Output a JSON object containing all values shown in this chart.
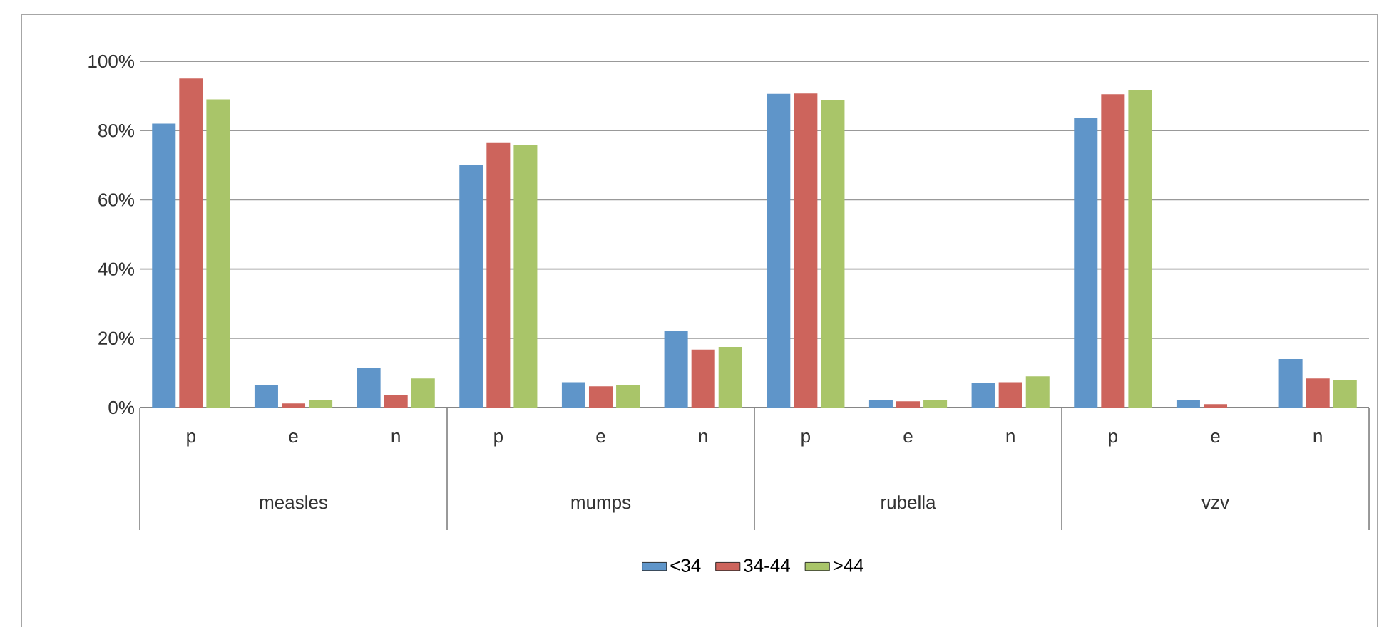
{
  "chart_data": {
    "type": "bar",
    "categories": [
      "p",
      "e",
      "n",
      "p",
      "e",
      "n",
      "p",
      "e",
      "n",
      "p",
      "e",
      "n"
    ],
    "series": [
      {
        "name": "<34",
        "color": "#5f95c9",
        "values": [
          82,
          6.4,
          11.5,
          70,
          7.3,
          22.2,
          90.6,
          2.2,
          7,
          83.7,
          2.1,
          14
        ]
      },
      {
        "name": "34-44",
        "color": "#cd645c",
        "values": [
          95,
          1.2,
          3.5,
          76.4,
          6.1,
          16.7,
          90.7,
          1.8,
          7.3,
          90.5,
          1,
          8.4
        ]
      },
      {
        "name": ">44",
        "color": "#a9c569",
        "values": [
          89,
          2.2,
          8.4,
          75.7,
          6.6,
          17.5,
          88.7,
          2.2,
          9,
          91.7,
          0,
          7.9
        ]
      }
    ],
    "annotations": [
      "measles",
      "mumps",
      "rubella",
      "vzv"
    ],
    "ylim": [
      0,
      100
    ],
    "yticks": [
      {
        "value": 0,
        "label": "0%"
      },
      {
        "value": 20,
        "label": "20%"
      },
      {
        "value": 40,
        "label": "40%"
      },
      {
        "value": 60,
        "label": "60%"
      },
      {
        "value": 80,
        "label": "80%"
      },
      {
        "value": 100,
        "label": "100%"
      }
    ],
    "grid": "y",
    "legend": "bottom"
  }
}
